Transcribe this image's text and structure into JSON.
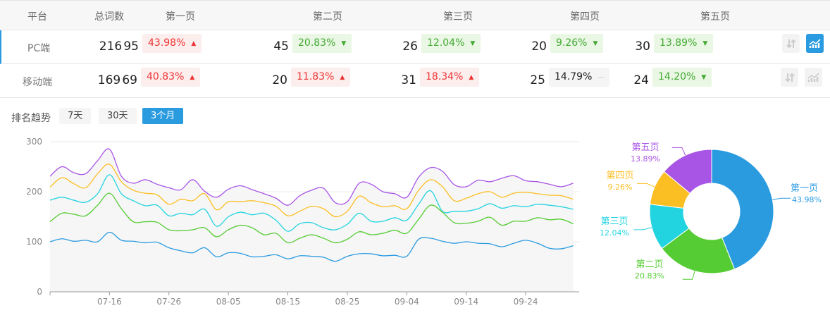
{
  "table": {
    "headers": [
      "平台",
      "总词数",
      "第一页",
      "第二页",
      "第三页",
      "第四页",
      "第五页"
    ],
    "rows": [
      {
        "platform": "PC端",
        "total": "216",
        "selected": true,
        "pages": [
          {
            "count": "95",
            "pct": "43.98%",
            "trend": "up"
          },
          {
            "count": "45",
            "pct": "20.83%",
            "trend": "down"
          },
          {
            "count": "26",
            "pct": "12.04%",
            "trend": "down"
          },
          {
            "count": "20",
            "pct": "9.26%",
            "trend": "down"
          },
          {
            "count": "30",
            "pct": "13.89%",
            "trend": "down"
          }
        ]
      },
      {
        "platform": "移动端",
        "total": "169",
        "selected": false,
        "pages": [
          {
            "count": "69",
            "pct": "40.83%",
            "trend": "up"
          },
          {
            "count": "20",
            "pct": "11.83%",
            "trend": "up"
          },
          {
            "count": "31",
            "pct": "18.34%",
            "trend": "up"
          },
          {
            "count": "25",
            "pct": "14.79%",
            "trend": "flat"
          },
          {
            "count": "24",
            "pct": "14.20%",
            "trend": "down"
          }
        ]
      }
    ],
    "trend_glyphs": {
      "up": "▲",
      "down": "▼",
      "flat": "—"
    },
    "row_icons": [
      "sort-icon",
      "trend-chart-icon"
    ]
  },
  "trend": {
    "label": "排名趋势",
    "ranges": [
      "7天",
      "30天",
      "3个月"
    ],
    "active_range": "3个月"
  },
  "colors": {
    "accent": "#2b9be0",
    "up": "#ee3333",
    "down": "#44aa33"
  },
  "chart_data": [
    {
      "type": "line",
      "x": [
        "07-06",
        "07-08",
        "07-10",
        "07-12",
        "07-14",
        "07-16",
        "07-18",
        "07-20",
        "07-22",
        "07-24",
        "07-26",
        "07-28",
        "07-30",
        "08-01",
        "08-03",
        "08-05",
        "08-07",
        "08-09",
        "08-11",
        "08-13",
        "08-15",
        "08-17",
        "08-19",
        "08-21",
        "08-23",
        "08-25",
        "08-27",
        "08-29",
        "08-31",
        "09-02",
        "09-04",
        "09-06",
        "09-08",
        "09-10",
        "09-12",
        "09-14",
        "09-16",
        "09-18",
        "09-20",
        "09-22",
        "09-24",
        "09-26",
        "09-28",
        "09-30",
        "10-02"
      ],
      "xticks": [
        "07-16",
        "07-26",
        "08-05",
        "08-15",
        "08-25",
        "09-04",
        "09-14",
        "09-24"
      ],
      "yticks": [
        0,
        100,
        200,
        300
      ],
      "ylim": [
        0,
        300
      ],
      "grid": true,
      "series": [
        {
          "color": "#a855e6",
          "values": [
            231,
            250,
            238,
            236,
            262,
            285,
            231,
            217,
            224,
            215,
            208,
            204,
            224,
            201,
            189,
            205,
            212,
            204,
            196,
            187,
            173,
            192,
            203,
            207,
            178,
            180,
            217,
            215,
            200,
            196,
            189,
            229,
            248,
            241,
            214,
            210,
            223,
            220,
            227,
            232,
            222,
            220,
            215,
            210,
            217
          ]
        },
        {
          "color": "#fbbf24",
          "values": [
            209,
            228,
            216,
            208,
            236,
            255,
            220,
            203,
            197,
            194,
            175,
            185,
            182,
            196,
            164,
            180,
            180,
            182,
            178,
            171,
            152,
            161,
            171,
            166,
            150,
            161,
            191,
            178,
            170,
            172,
            166,
            203,
            224,
            210,
            182,
            187,
            196,
            200,
            189,
            197,
            199,
            196,
            193,
            192,
            185
          ]
        },
        {
          "color": "#22d3e0",
          "values": [
            183,
            189,
            183,
            179,
            196,
            234,
            196,
            182,
            172,
            173,
            152,
            157,
            154,
            165,
            131,
            150,
            159,
            154,
            157,
            143,
            121,
            136,
            138,
            128,
            124,
            135,
            157,
            141,
            141,
            148,
            143,
            175,
            202,
            161,
            161,
            161,
            166,
            176,
            167,
            172,
            170,
            175,
            173,
            170,
            165
          ]
        },
        {
          "color": "#55cc33",
          "values": [
            140,
            157,
            155,
            152,
            173,
            197,
            166,
            140,
            140,
            139,
            124,
            122,
            124,
            128,
            110,
            124,
            133,
            128,
            114,
            117,
            98,
            107,
            114,
            107,
            98,
            105,
            120,
            114,
            117,
            123,
            117,
            145,
            173,
            159,
            138,
            137,
            141,
            149,
            133,
            141,
            141,
            148,
            144,
            145,
            136
          ]
        },
        {
          "color": "#2b9be0",
          "values": [
            100,
            106,
            101,
            103,
            100,
            119,
            103,
            101,
            98,
            99,
            88,
            82,
            78,
            88,
            70,
            78,
            77,
            70,
            71,
            74,
            66,
            72,
            71,
            69,
            61,
            71,
            76,
            76,
            72,
            73,
            71,
            105,
            107,
            101,
            97,
            100,
            97,
            96,
            90,
            97,
            103,
            97,
            87,
            86,
            92
          ]
        }
      ]
    },
    {
      "type": "pie",
      "donut": true,
      "slices": [
        {
          "label": "第一页",
          "pct": "43.98%",
          "value": 43.98,
          "color": "#2b9be0"
        },
        {
          "label": "第二页",
          "pct": "20.83%",
          "value": 20.83,
          "color": "#55cc33"
        },
        {
          "label": "第三页",
          "pct": "12.04%",
          "value": 12.04,
          "color": "#22d3e0"
        },
        {
          "label": "第四页",
          "pct": "9.26%",
          "value": 9.26,
          "color": "#fbbf24"
        },
        {
          "label": "第五页",
          "pct": "13.89%",
          "value": 13.89,
          "color": "#a855e6"
        }
      ]
    }
  ]
}
